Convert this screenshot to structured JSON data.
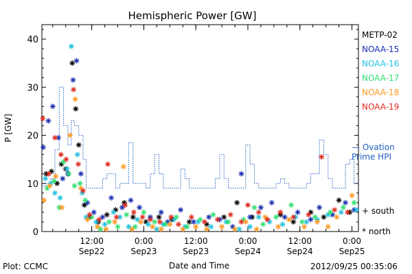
{
  "chart_data": {
    "type": "scatter",
    "title": "Hemispheric Power [GW]",
    "ylabel": "P [GW]",
    "xlabel": "Date and Time",
    "ylim": [
      0,
      43
    ],
    "xlim_hours": [
      0,
      73
    ],
    "yticks": [
      "0",
      "10",
      "20",
      "30",
      "40"
    ],
    "xticks": [
      {
        "time": "12:00",
        "date": "Sep22"
      },
      {
        "time": "0:00",
        "date": "Sep23"
      },
      {
        "time": "12:00",
        "date": "Sep23"
      },
      {
        "time": "0:00",
        "date": "Sep24"
      },
      {
        "time": "12:00",
        "date": "Sep24"
      },
      {
        "time": "0:00",
        "date": "Sep25"
      }
    ],
    "series": [
      {
        "name": "METP-02",
        "color": "#000000",
        "values": [
          [
            1.0,
            12
          ],
          [
            2.2,
            12.5
          ],
          [
            3.5,
            10
          ],
          [
            4.5,
            14
          ],
          [
            5.5,
            13
          ],
          [
            7.0,
            35
          ],
          [
            7.8,
            25.5
          ],
          [
            8.5,
            18
          ],
          [
            9.8,
            5.5
          ],
          [
            11.0,
            3
          ],
          [
            13.0,
            2
          ],
          [
            15.0,
            3.5
          ],
          [
            17.0,
            4.5
          ],
          [
            19.0,
            6
          ],
          [
            21.0,
            3
          ],
          [
            24.0,
            2
          ],
          [
            27.0,
            3
          ],
          [
            30.0,
            2.5
          ],
          [
            34.0,
            2
          ],
          [
            38.0,
            1.5
          ],
          [
            42.0,
            3
          ],
          [
            45.0,
            6
          ],
          [
            48.5,
            3
          ],
          [
            52.0,
            2.5
          ],
          [
            55.0,
            3.5
          ],
          [
            58.0,
            2
          ],
          [
            62.0,
            4
          ],
          [
            65.0,
            3
          ],
          [
            68.5,
            6.5
          ],
          [
            71.0,
            4
          ]
        ]
      },
      {
        "name": "NOAA-15",
        "color": "#1a2fb0",
        "values": [
          [
            0.3,
            17.5
          ],
          [
            1.5,
            23
          ],
          [
            2.5,
            26
          ],
          [
            3.8,
            19.5
          ],
          [
            4.8,
            11
          ],
          [
            6.0,
            12
          ],
          [
            7.2,
            31.5
          ],
          [
            8.0,
            35.5
          ],
          [
            9.0,
            12
          ],
          [
            10.5,
            6
          ],
          [
            12.0,
            4
          ],
          [
            14.0,
            3
          ],
          [
            16.0,
            7
          ],
          [
            18.5,
            5
          ],
          [
            20.5,
            6.5
          ],
          [
            22.5,
            5
          ],
          [
            25.0,
            3
          ],
          [
            27.5,
            4
          ],
          [
            29.0,
            2
          ],
          [
            32.0,
            4.5
          ],
          [
            35.0,
            2
          ],
          [
            38.5,
            3
          ],
          [
            41.0,
            2.5
          ],
          [
            44.0,
            1
          ],
          [
            46.0,
            12
          ],
          [
            48.0,
            3
          ],
          [
            50.5,
            5
          ],
          [
            53.0,
            6
          ],
          [
            56.0,
            3
          ],
          [
            59.0,
            4
          ],
          [
            62.0,
            2.5
          ],
          [
            64.0,
            5
          ],
          [
            67.0,
            3.5
          ],
          [
            70.0,
            6
          ],
          [
            72.0,
            4.5
          ]
        ]
      },
      {
        "name": "NOAA-16",
        "color": "#20c0e0",
        "values": [
          [
            0.8,
            11
          ],
          [
            2.0,
            10
          ],
          [
            3.0,
            8
          ],
          [
            4.2,
            7
          ],
          [
            5.8,
            13
          ],
          [
            6.8,
            38.5
          ],
          [
            8.2,
            16
          ],
          [
            9.3,
            8
          ],
          [
            10.2,
            3
          ],
          [
            12.5,
            2
          ],
          [
            14.5,
            1.5
          ],
          [
            16.5,
            4
          ],
          [
            18.0,
            3
          ],
          [
            20.0,
            1
          ],
          [
            22.0,
            2.5
          ],
          [
            24.5,
            1.5
          ],
          [
            26.5,
            0.5
          ],
          [
            28.0,
            1.5
          ],
          [
            30.5,
            2.5
          ],
          [
            33.0,
            1
          ],
          [
            36.0,
            2
          ],
          [
            39.0,
            1
          ],
          [
            42.5,
            2
          ],
          [
            45.5,
            0.5
          ],
          [
            48.0,
            1
          ],
          [
            50.0,
            3
          ],
          [
            52.5,
            2
          ],
          [
            55.5,
            1.5
          ],
          [
            58.5,
            3
          ],
          [
            61.0,
            2
          ],
          [
            63.5,
            2.5
          ],
          [
            66.0,
            3.5
          ],
          [
            69.0,
            4
          ],
          [
            72.5,
            4.5
          ]
        ]
      },
      {
        "name": "NOAA-17",
        "color": "#30e070",
        "values": [
          [
            1.2,
            9
          ],
          [
            2.8,
            10.5
          ],
          [
            4.0,
            5
          ],
          [
            5.0,
            14.5
          ],
          [
            6.2,
            12
          ],
          [
            7.5,
            9.5
          ],
          [
            8.8,
            10
          ],
          [
            10.0,
            6.5
          ],
          [
            11.5,
            3
          ],
          [
            13.5,
            0.5
          ],
          [
            15.5,
            2
          ],
          [
            17.5,
            1
          ],
          [
            19.5,
            3.5
          ],
          [
            21.5,
            1
          ],
          [
            23.5,
            4
          ],
          [
            26.0,
            2
          ],
          [
            28.5,
            1.5
          ],
          [
            31.0,
            3
          ],
          [
            33.5,
            1
          ],
          [
            36.5,
            2.5
          ],
          [
            39.5,
            3.5
          ],
          [
            43.0,
            2
          ],
          [
            46.5,
            2.5
          ],
          [
            49.0,
            5
          ],
          [
            51.0,
            1.5
          ],
          [
            54.0,
            3
          ],
          [
            57.5,
            5.5
          ],
          [
            60.0,
            2
          ],
          [
            63.0,
            3
          ],
          [
            66.5,
            4
          ],
          [
            69.5,
            5
          ],
          [
            72.0,
            6
          ]
        ]
      },
      {
        "name": "NOAA-18",
        "color": "#ff9920",
        "values": [
          [
            0.5,
            6.5
          ],
          [
            1.8,
            9.5
          ],
          [
            3.2,
            11.5
          ],
          [
            4.6,
            5
          ],
          [
            6.5,
            20
          ],
          [
            7.7,
            27.5
          ],
          [
            9.0,
            9
          ],
          [
            10.5,
            2.5
          ],
          [
            12.8,
            1
          ],
          [
            14.8,
            0.5
          ],
          [
            16.8,
            2
          ],
          [
            18.8,
            13.5
          ],
          [
            20.8,
            0.5
          ],
          [
            22.8,
            2
          ],
          [
            25.5,
            1
          ],
          [
            27.5,
            0.5
          ],
          [
            29.5,
            1.5
          ],
          [
            32.5,
            0.5
          ],
          [
            35.5,
            1
          ],
          [
            38.0,
            0.5
          ],
          [
            41.5,
            1
          ],
          [
            44.5,
            0.5
          ],
          [
            47.0,
            2
          ],
          [
            49.5,
            0.5
          ],
          [
            51.5,
            3
          ],
          [
            54.5,
            1
          ],
          [
            57.0,
            2.5
          ],
          [
            60.5,
            1
          ],
          [
            63.5,
            2
          ],
          [
            66.0,
            1
          ],
          [
            68.0,
            3
          ],
          [
            71.5,
            7.5
          ]
        ]
      },
      {
        "name": "NOAA-19",
        "color": "#e02a20",
        "values": [
          [
            0.2,
            23.5
          ],
          [
            1.6,
            12
          ],
          [
            3.0,
            19.5
          ],
          [
            4.4,
            16
          ],
          [
            5.6,
            15
          ],
          [
            7.3,
            29.5
          ],
          [
            8.4,
            14
          ],
          [
            9.5,
            8.5
          ],
          [
            11.0,
            3.5
          ],
          [
            13.2,
            2.5
          ],
          [
            15.2,
            14
          ],
          [
            17.2,
            3
          ],
          [
            19.2,
            5.5
          ],
          [
            21.2,
            4
          ],
          [
            23.2,
            3
          ],
          [
            25.0,
            2.5
          ],
          [
            27.2,
            2
          ],
          [
            29.8,
            3
          ],
          [
            31.5,
            1.5
          ],
          [
            34.5,
            3
          ],
          [
            37.5,
            2
          ],
          [
            40.5,
            2.5
          ],
          [
            43.5,
            3.5
          ],
          [
            46.0,
            2
          ],
          [
            47.5,
            5.5
          ],
          [
            50.0,
            4
          ],
          [
            52.0,
            2.5
          ],
          [
            55.0,
            4
          ],
          [
            58.0,
            3
          ],
          [
            61.5,
            3.5
          ],
          [
            64.5,
            15.5
          ],
          [
            67.5,
            4.5
          ],
          [
            70.5,
            4
          ]
        ]
      }
    ],
    "ovation_step": [
      [
        0,
        9.5
      ],
      [
        1,
        10
      ],
      [
        2,
        11
      ],
      [
        3,
        17
      ],
      [
        4,
        30
      ],
      [
        5,
        22
      ],
      [
        6,
        18
      ],
      [
        6.8,
        23
      ],
      [
        7.5,
        22
      ],
      [
        8.5,
        20
      ],
      [
        9.5,
        15
      ],
      [
        10.2,
        9
      ],
      [
        13,
        9
      ],
      [
        14,
        11
      ],
      [
        15,
        12
      ],
      [
        17,
        9
      ],
      [
        18,
        10
      ],
      [
        19,
        10
      ],
      [
        20,
        18.5
      ],
      [
        21,
        10
      ],
      [
        23,
        10
      ],
      [
        24,
        9
      ],
      [
        25,
        12
      ],
      [
        26,
        16
      ],
      [
        27,
        12
      ],
      [
        28,
        9
      ],
      [
        31,
        9
      ],
      [
        32,
        13
      ],
      [
        33,
        11
      ],
      [
        34,
        9
      ],
      [
        39,
        9
      ],
      [
        40,
        11
      ],
      [
        41,
        16
      ],
      [
        42,
        11
      ],
      [
        43,
        9
      ],
      [
        46,
        9
      ],
      [
        47,
        18
      ],
      [
        48,
        14
      ],
      [
        49,
        10
      ],
      [
        50,
        9
      ],
      [
        54,
        10
      ],
      [
        55,
        11
      ],
      [
        56,
        10
      ],
      [
        57,
        9
      ],
      [
        60,
        9
      ],
      [
        61,
        10
      ],
      [
        62,
        12
      ],
      [
        64,
        19
      ],
      [
        65,
        16
      ],
      [
        66,
        11
      ],
      [
        67,
        9
      ],
      [
        70,
        14
      ],
      [
        71,
        15
      ],
      [
        72,
        10
      ],
      [
        73,
        10
      ]
    ],
    "legend_placement": "right",
    "grid": false
  },
  "legend": {
    "entries": [
      {
        "name": "METP-02",
        "color": "#000000"
      },
      {
        "name": "NOAA-15",
        "color": "#1a2fb0"
      },
      {
        "name": "NOAA-16",
        "color": "#20c0e0"
      },
      {
        "name": "NOAA-17",
        "color": "#30e070"
      },
      {
        "name": "NOAA-18",
        "color": "#ff9920"
      },
      {
        "name": "NOAA-19",
        "color": "#e02a20"
      }
    ],
    "ovation_label_line1": "— Ovation",
    "ovation_label_line2": "Prime HPI",
    "south_label": "+ south",
    "north_label": "* north"
  },
  "footer": {
    "plot_credit": "Plot: CCMC",
    "timestamp": "2012/09/25 00:35:06"
  }
}
